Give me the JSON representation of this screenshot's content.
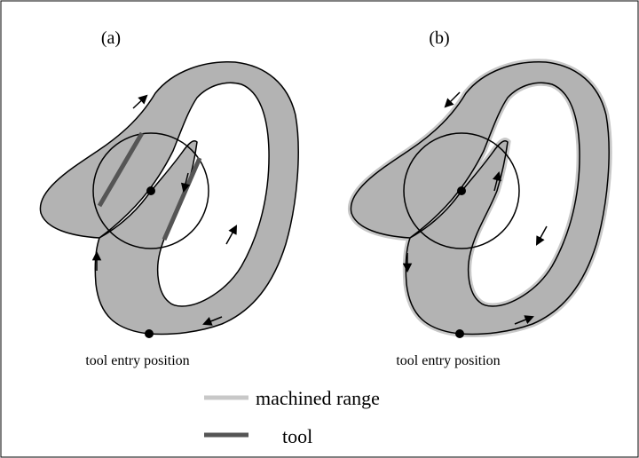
{
  "panels": [
    {
      "label": "(a)",
      "caption": "tool entry position"
    },
    {
      "label": "(b)",
      "caption": "tool entry position"
    }
  ],
  "legend": [
    {
      "label": "machined range"
    },
    {
      "label": "tool"
    }
  ]
}
